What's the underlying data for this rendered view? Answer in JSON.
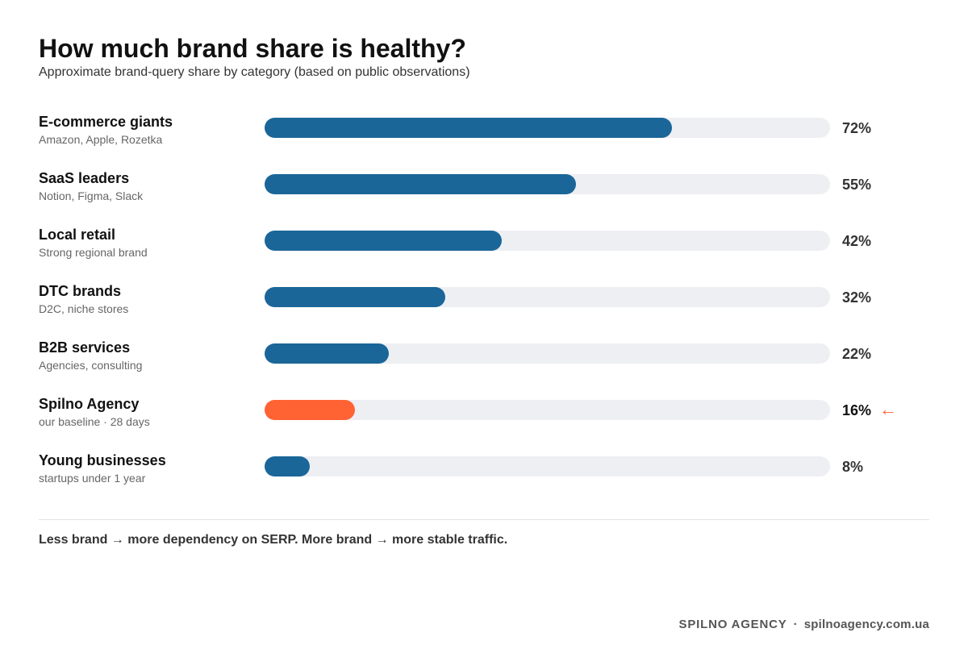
{
  "header": {
    "title": "How much brand share is healthy?",
    "subtitle": "Approximate brand-query share by category (based on public observations)"
  },
  "chart_data": {
    "type": "bar",
    "orientation": "horizontal",
    "xlim": [
      0,
      100
    ],
    "value_suffix": "%",
    "categories": [
      "E-commerce giants",
      "SaaS leaders",
      "Local retail",
      "DTC brands",
      "B2B services",
      "Spilno Agency",
      "Young businesses"
    ],
    "subcategories": [
      "Amazon, Apple, Rozetka",
      "Notion, Figma, Slack",
      "Strong regional brand",
      "D2C, niche stores",
      "Agencies, consulting",
      "our baseline · 28 days",
      "startups under 1 year"
    ],
    "values": [
      72,
      55,
      42,
      32,
      22,
      16,
      8
    ],
    "value_labels": [
      "72%",
      "55%",
      "42%",
      "32%",
      "22%",
      "16%",
      "8%"
    ],
    "highlight_index": 5,
    "highlight_marker": "←",
    "colors": {
      "bar": "#1a6699",
      "highlight": "#ff6333",
      "track": "#eeeff3",
      "highlight_value_text": "#111111",
      "value_text": "#333333"
    },
    "grid": false,
    "legend": "none"
  },
  "footer": {
    "note": "Less brand → more dependency on SERP. More brand → more stable traffic.",
    "brand": "SPILNO AGENCY",
    "separator": "·",
    "website": "spilnoagency.com.ua"
  }
}
